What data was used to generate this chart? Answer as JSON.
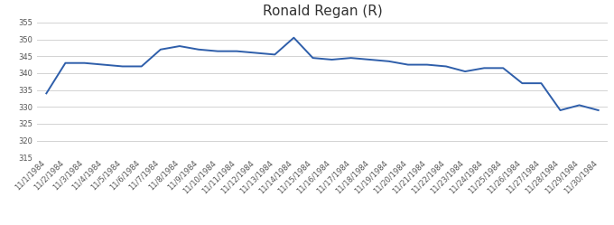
{
  "title": "Ronald Regan (R)",
  "dates": [
    "11/1/1984",
    "11/2/1984",
    "11/3/1984",
    "11/4/1984",
    "11/5/1984",
    "11/6/1984",
    "11/7/1984",
    "11/8/1984",
    "11/9/1984",
    "11/10/1984",
    "11/11/1984",
    "11/12/1984",
    "11/13/1984",
    "11/14/1984",
    "11/15/1984",
    "11/16/1984",
    "11/17/1984",
    "11/18/1984",
    "11/19/1984",
    "11/20/1984",
    "11/21/1984",
    "11/22/1984",
    "11/23/1984",
    "11/24/1984",
    "11/25/1984",
    "11/26/1984",
    "11/27/1984",
    "11/28/1984",
    "11/29/1984",
    "11/30/1984"
  ],
  "values": [
    334.0,
    343.0,
    343.0,
    342.5,
    342.0,
    342.0,
    347.0,
    348.0,
    347.0,
    346.5,
    346.5,
    346.0,
    345.5,
    350.5,
    344.5,
    344.0,
    344.5,
    344.0,
    343.5,
    342.5,
    342.5,
    342.0,
    340.5,
    341.5,
    341.5,
    337.0,
    337.0,
    329.0,
    330.5,
    329.0
  ],
  "line_color": "#2E5EAA",
  "ylim": [
    315,
    355
  ],
  "yticks": [
    315,
    320,
    325,
    330,
    335,
    340,
    345,
    350,
    355
  ],
  "background_color": "#ffffff",
  "grid_color": "#d3d3d3",
  "title_fontsize": 11,
  "tick_fontsize": 6,
  "line_width": 1.4
}
